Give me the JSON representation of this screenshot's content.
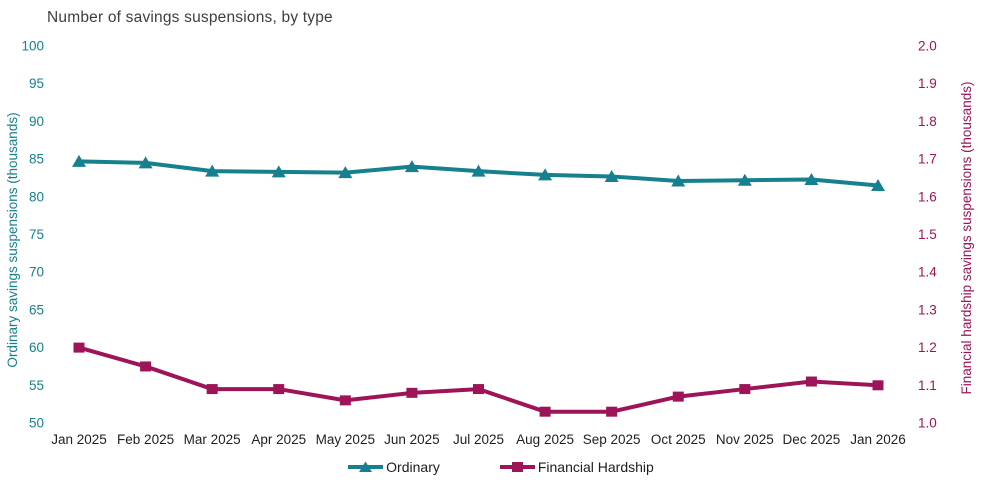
{
  "chart_data": {
    "type": "line",
    "title": "Number of savings suspensions, by type",
    "categories": [
      "Jan 2025",
      "Feb 2025",
      "Mar 2025",
      "Apr 2025",
      "May 2025",
      "Jun 2025",
      "Jul 2025",
      "Aug 2025",
      "Sep 2025",
      "Oct 2025",
      "Nov 2025",
      "Dec 2025",
      "Jan 2026"
    ],
    "series": [
      {
        "name": "Ordinary",
        "axis": "left",
        "color": "#16808e",
        "marker": "triangle",
        "values": [
          84.7,
          84.5,
          83.4,
          83.3,
          83.2,
          84.0,
          83.4,
          82.9,
          82.7,
          82.1,
          82.2,
          82.3,
          81.5
        ]
      },
      {
        "name": "Financial Hardship",
        "axis": "right",
        "color": "#9d1458",
        "marker": "square",
        "values": [
          1.2,
          1.15,
          1.09,
          1.09,
          1.06,
          1.08,
          1.09,
          1.03,
          1.03,
          1.07,
          1.09,
          1.11,
          1.1
        ]
      }
    ],
    "left_axis": {
      "label": "Ordinary savings suspensions (thousands)",
      "min": 50,
      "max": 100,
      "tick_step": 5,
      "color": "#16808e"
    },
    "right_axis": {
      "label": "Financial hardship savings suspensions (thousands)",
      "min": 1.0,
      "max": 2.0,
      "tick_step": 0.1,
      "color": "#9d1458"
    },
    "x_label_color": "#1f1f1f",
    "grid": false,
    "legend_position": "bottom"
  }
}
